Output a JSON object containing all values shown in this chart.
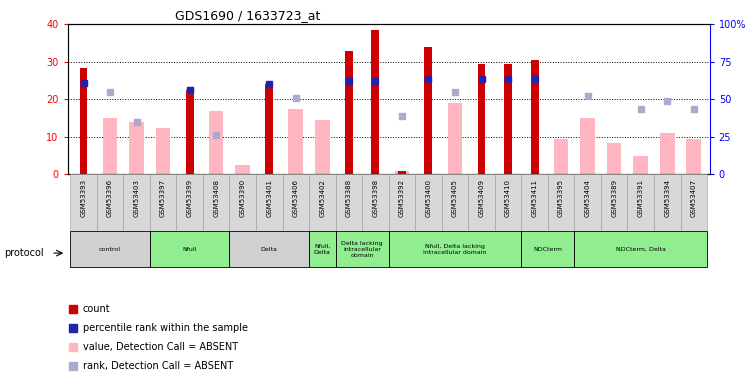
{
  "title": "GDS1690 / 1633723_at",
  "samples": [
    "GSM53393",
    "GSM53396",
    "GSM53403",
    "GSM53397",
    "GSM53399",
    "GSM53408",
    "GSM53390",
    "GSM53401",
    "GSM53406",
    "GSM53402",
    "GSM53388",
    "GSM53398",
    "GSM53392",
    "GSM53400",
    "GSM53405",
    "GSM53409",
    "GSM53410",
    "GSM53411",
    "GSM53395",
    "GSM53404",
    "GSM53389",
    "GSM53391",
    "GSM53394",
    "GSM53407"
  ],
  "count": [
    28.5,
    0,
    0,
    0,
    22.5,
    0,
    0,
    24.2,
    0,
    0,
    33.0,
    38.5,
    0.8,
    34.0,
    0,
    29.5,
    29.5,
    30.5,
    0,
    0,
    0,
    0,
    0,
    0
  ],
  "percentile_rank_present": [
    24.5,
    0,
    0,
    0,
    22.5,
    0,
    0,
    24.0,
    0,
    0,
    25.0,
    25.0,
    0,
    25.5,
    0,
    25.5,
    25.5,
    25.5,
    0,
    0,
    0,
    0,
    0,
    0
  ],
  "value_absent": [
    0,
    15.0,
    14.0,
    12.5,
    0,
    17.0,
    2.5,
    0,
    17.5,
    14.5,
    0,
    0,
    0.8,
    0,
    19.0,
    0,
    0,
    0,
    9.5,
    15.0,
    8.5,
    5.0,
    11.0,
    9.5
  ],
  "rank_absent": [
    0,
    22.0,
    14.0,
    0,
    22.5,
    10.5,
    0,
    0,
    20.5,
    0,
    0,
    0,
    15.5,
    0,
    22.0,
    0,
    0,
    0,
    0,
    21.0,
    0,
    17.5,
    19.5,
    17.5
  ],
  "protocols": [
    {
      "label": "control",
      "start": 0,
      "end": 3,
      "color": "#d0d0d0"
    },
    {
      "label": "Nfull",
      "start": 3,
      "end": 6,
      "color": "#90EE90"
    },
    {
      "label": "Delta",
      "start": 6,
      "end": 9,
      "color": "#d0d0d0"
    },
    {
      "label": "Nfull,\nDelta",
      "start": 9,
      "end": 10,
      "color": "#90EE90"
    },
    {
      "label": "Delta lacking\nintracellular\ndomain",
      "start": 10,
      "end": 12,
      "color": "#90EE90"
    },
    {
      "label": "Nfull, Delta lacking\nintracellular domain",
      "start": 12,
      "end": 17,
      "color": "#90EE90"
    },
    {
      "label": "NDCterm",
      "start": 17,
      "end": 19,
      "color": "#90EE90"
    },
    {
      "label": "NDCterm, Delta",
      "start": 19,
      "end": 24,
      "color": "#90EE90"
    }
  ],
  "ylim_left": [
    0,
    40
  ],
  "ylim_right": [
    0,
    100
  ],
  "yticks_left": [
    0,
    10,
    20,
    30,
    40
  ],
  "yticks_right": [
    0,
    25,
    50,
    75,
    100
  ],
  "count_color": "#CC0000",
  "rank_present_color": "#2222AA",
  "value_absent_color": "#FFB6C1",
  "rank_absent_color": "#AAAACC"
}
